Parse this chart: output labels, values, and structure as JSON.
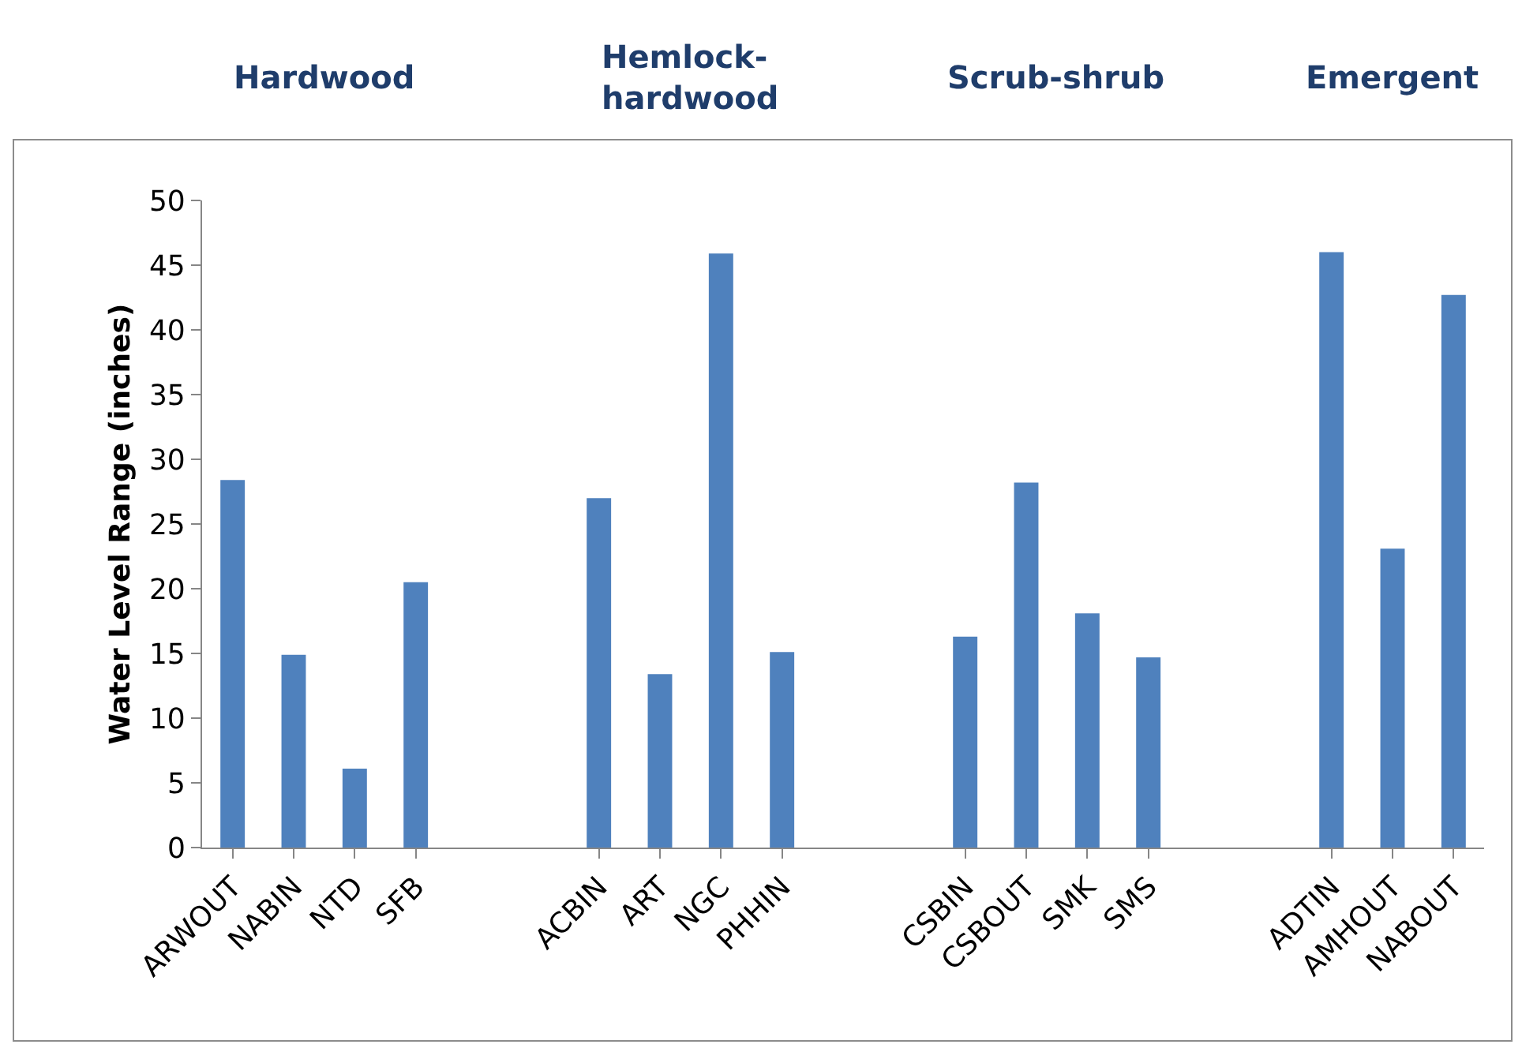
{
  "chart_data": {
    "type": "bar",
    "ylabel": "Water Level Range (inches)",
    "categories": [
      "ARWOUT",
      "NABIN",
      "NTD",
      "SFB",
      null,
      null,
      "ACBIN",
      "ART",
      "NGC",
      "PHHIN",
      null,
      null,
      "CSBIN",
      "CSBOUT",
      "SMK",
      "SMS",
      null,
      null,
      "ADTIN",
      "AMHOUT",
      "NABOUT"
    ],
    "values": [
      28.4,
      14.9,
      6.1,
      20.5,
      null,
      null,
      27.0,
      13.4,
      45.9,
      15.1,
      null,
      null,
      16.3,
      28.2,
      18.1,
      14.7,
      null,
      null,
      46.0,
      23.1,
      42.7
    ],
    "color": "#4f81bd",
    "ylim": [
      0,
      50
    ],
    "yticks": [
      0,
      5,
      10,
      15,
      20,
      25,
      30,
      35,
      40,
      45,
      50
    ],
    "grid": false,
    "annotations": [
      "Hardwood",
      "Hemlock-\nhardwood",
      "Scrub-shrub",
      "Emergent"
    ]
  }
}
